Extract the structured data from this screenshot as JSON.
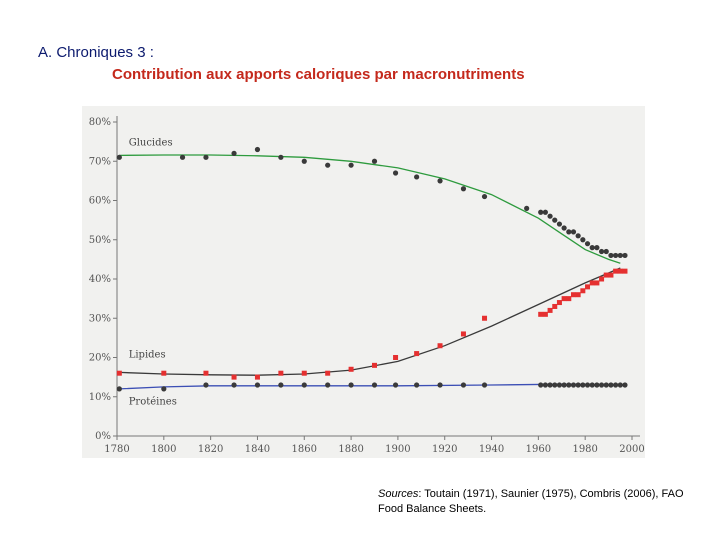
{
  "header": {
    "prefix": "A. Chroniques 3 :",
    "title": "Contribution aux apports caloriques par macronutriments"
  },
  "sources": {
    "label": "Sources",
    "text": ": Toutain (1971), Saunier (1975), Combris (2006), FAO Food Balance Sheets."
  },
  "colors": {
    "glucides": "#2e9b3e",
    "lipides": "#3a3a3a",
    "proteines": "#3c4fb5",
    "lipides_points": "#e53030",
    "points": "#3a3a3a",
    "background": "#f1f1ef",
    "axis": "#777777"
  },
  "chart_data": {
    "type": "line",
    "title": "",
    "xlabel": "",
    "ylabel": "",
    "xlim": [
      1780,
      2000
    ],
    "ylim": [
      0,
      80
    ],
    "x_ticks": [
      1780,
      1800,
      1820,
      1840,
      1860,
      1880,
      1900,
      1920,
      1940,
      1960,
      1980,
      2000
    ],
    "y_ticks": [
      0,
      10,
      20,
      30,
      40,
      50,
      60,
      70,
      80
    ],
    "y_tick_labels": [
      "0%",
      "10%",
      "20%",
      "30%",
      "40%",
      "50%",
      "60%",
      "70%",
      "80%"
    ],
    "series": [
      {
        "name": "Glucides",
        "label_position": [
          1785,
          74
        ],
        "trend": [
          [
            1781,
            71.5
          ],
          [
            1800,
            71.6
          ],
          [
            1820,
            71.6
          ],
          [
            1840,
            71.4
          ],
          [
            1860,
            71
          ],
          [
            1880,
            70
          ],
          [
            1900,
            68.3
          ],
          [
            1920,
            65.5
          ],
          [
            1940,
            61.5
          ],
          [
            1960,
            55.5
          ],
          [
            1970,
            51.5
          ],
          [
            1980,
            47.5
          ],
          [
            1990,
            45
          ],
          [
            1995,
            44
          ]
        ],
        "points": [
          [
            1781,
            71
          ],
          [
            1808,
            71
          ],
          [
            1818,
            71
          ],
          [
            1830,
            72
          ],
          [
            1840,
            73
          ],
          [
            1850,
            71
          ],
          [
            1860,
            70
          ],
          [
            1870,
            69
          ],
          [
            1880,
            69
          ],
          [
            1890,
            70
          ],
          [
            1899,
            67
          ],
          [
            1908,
            66
          ],
          [
            1918,
            65
          ],
          [
            1928,
            63
          ],
          [
            1937,
            61
          ],
          [
            1955,
            58
          ],
          [
            1961,
            57
          ],
          [
            1963,
            57
          ],
          [
            1965,
            56
          ],
          [
            1967,
            55
          ],
          [
            1969,
            54
          ],
          [
            1971,
            53
          ],
          [
            1973,
            52
          ],
          [
            1975,
            52
          ],
          [
            1977,
            51
          ],
          [
            1979,
            50
          ],
          [
            1981,
            49
          ],
          [
            1983,
            48
          ],
          [
            1985,
            48
          ],
          [
            1987,
            47
          ],
          [
            1989,
            47
          ],
          [
            1991,
            46
          ],
          [
            1993,
            46
          ],
          [
            1995,
            46
          ],
          [
            1997,
            46
          ]
        ]
      },
      {
        "name": "Lipides",
        "label_position": [
          1785,
          20
        ],
        "trend": [
          [
            1781,
            16.2
          ],
          [
            1800,
            15.8
          ],
          [
            1820,
            15.6
          ],
          [
            1840,
            15.5
          ],
          [
            1860,
            15.8
          ],
          [
            1880,
            16.8
          ],
          [
            1900,
            19
          ],
          [
            1920,
            23
          ],
          [
            1940,
            28
          ],
          [
            1960,
            33.5
          ],
          [
            1980,
            39
          ],
          [
            1995,
            42.8
          ]
        ],
        "points": [
          [
            1781,
            16
          ],
          [
            1800,
            16
          ],
          [
            1818,
            16
          ],
          [
            1830,
            15
          ],
          [
            1840,
            15
          ],
          [
            1850,
            16
          ],
          [
            1860,
            16
          ],
          [
            1870,
            16
          ],
          [
            1880,
            17
          ],
          [
            1890,
            18
          ],
          [
            1899,
            20
          ],
          [
            1908,
            21
          ],
          [
            1918,
            23
          ],
          [
            1928,
            26
          ],
          [
            1937,
            30
          ],
          [
            1961,
            31
          ],
          [
            1963,
            31
          ],
          [
            1965,
            32
          ],
          [
            1967,
            33
          ],
          [
            1969,
            34
          ],
          [
            1971,
            35
          ],
          [
            1973,
            35
          ],
          [
            1975,
            36
          ],
          [
            1977,
            36
          ],
          [
            1979,
            37
          ],
          [
            1981,
            38
          ],
          [
            1983,
            39
          ],
          [
            1985,
            39
          ],
          [
            1987,
            40
          ],
          [
            1989,
            41
          ],
          [
            1991,
            41
          ],
          [
            1993,
            42
          ],
          [
            1995,
            42
          ],
          [
            1997,
            42
          ]
        ]
      },
      {
        "name": "Protéines",
        "label_position": [
          1785,
          8
        ],
        "trend": [
          [
            1781,
            12
          ],
          [
            1800,
            12.5
          ],
          [
            1820,
            12.8
          ],
          [
            1860,
            12.8
          ],
          [
            1900,
            12.8
          ],
          [
            1940,
            13
          ],
          [
            1970,
            13.2
          ],
          [
            1997,
            13
          ]
        ],
        "points": [
          [
            1781,
            12
          ],
          [
            1800,
            12
          ],
          [
            1818,
            13
          ],
          [
            1830,
            13
          ],
          [
            1840,
            13
          ],
          [
            1850,
            13
          ],
          [
            1860,
            13
          ],
          [
            1870,
            13
          ],
          [
            1880,
            13
          ],
          [
            1890,
            13
          ],
          [
            1899,
            13
          ],
          [
            1908,
            13
          ],
          [
            1918,
            13
          ],
          [
            1928,
            13
          ],
          [
            1937,
            13
          ],
          [
            1961,
            13
          ],
          [
            1963,
            13
          ],
          [
            1965,
            13
          ],
          [
            1967,
            13
          ],
          [
            1969,
            13
          ],
          [
            1971,
            13
          ],
          [
            1973,
            13
          ],
          [
            1975,
            13
          ],
          [
            1977,
            13
          ],
          [
            1979,
            13
          ],
          [
            1981,
            13
          ],
          [
            1983,
            13
          ],
          [
            1985,
            13
          ],
          [
            1987,
            13
          ],
          [
            1989,
            13
          ],
          [
            1991,
            13
          ],
          [
            1993,
            13
          ],
          [
            1995,
            13
          ],
          [
            1997,
            13
          ]
        ]
      }
    ],
    "grid": false,
    "legend": "inline-left"
  }
}
